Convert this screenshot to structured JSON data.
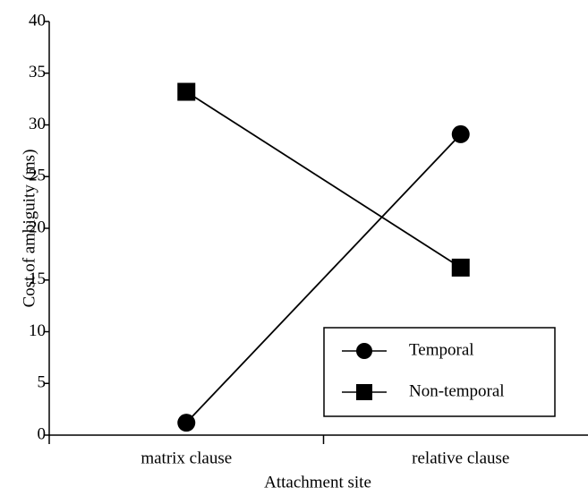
{
  "chart_data": {
    "type": "line",
    "xlabel": "Attachment site",
    "ylabel": "Cost of ambiguity (ms)",
    "categories": [
      "matrix clause",
      "relative clause"
    ],
    "series": [
      {
        "name": "Temporal",
        "color": "#000000",
        "marker": "circle",
        "values": [
          1.2,
          29.1
        ]
      },
      {
        "name": "Non-temporal",
        "color": "#000000",
        "marker": "square",
        "values": [
          33.2,
          16.2
        ]
      }
    ],
    "ylim": [
      0,
      40
    ],
    "yticks": [
      0,
      5,
      10,
      15,
      20,
      25,
      30,
      35,
      40
    ],
    "grid": false,
    "legend": "lower right"
  }
}
